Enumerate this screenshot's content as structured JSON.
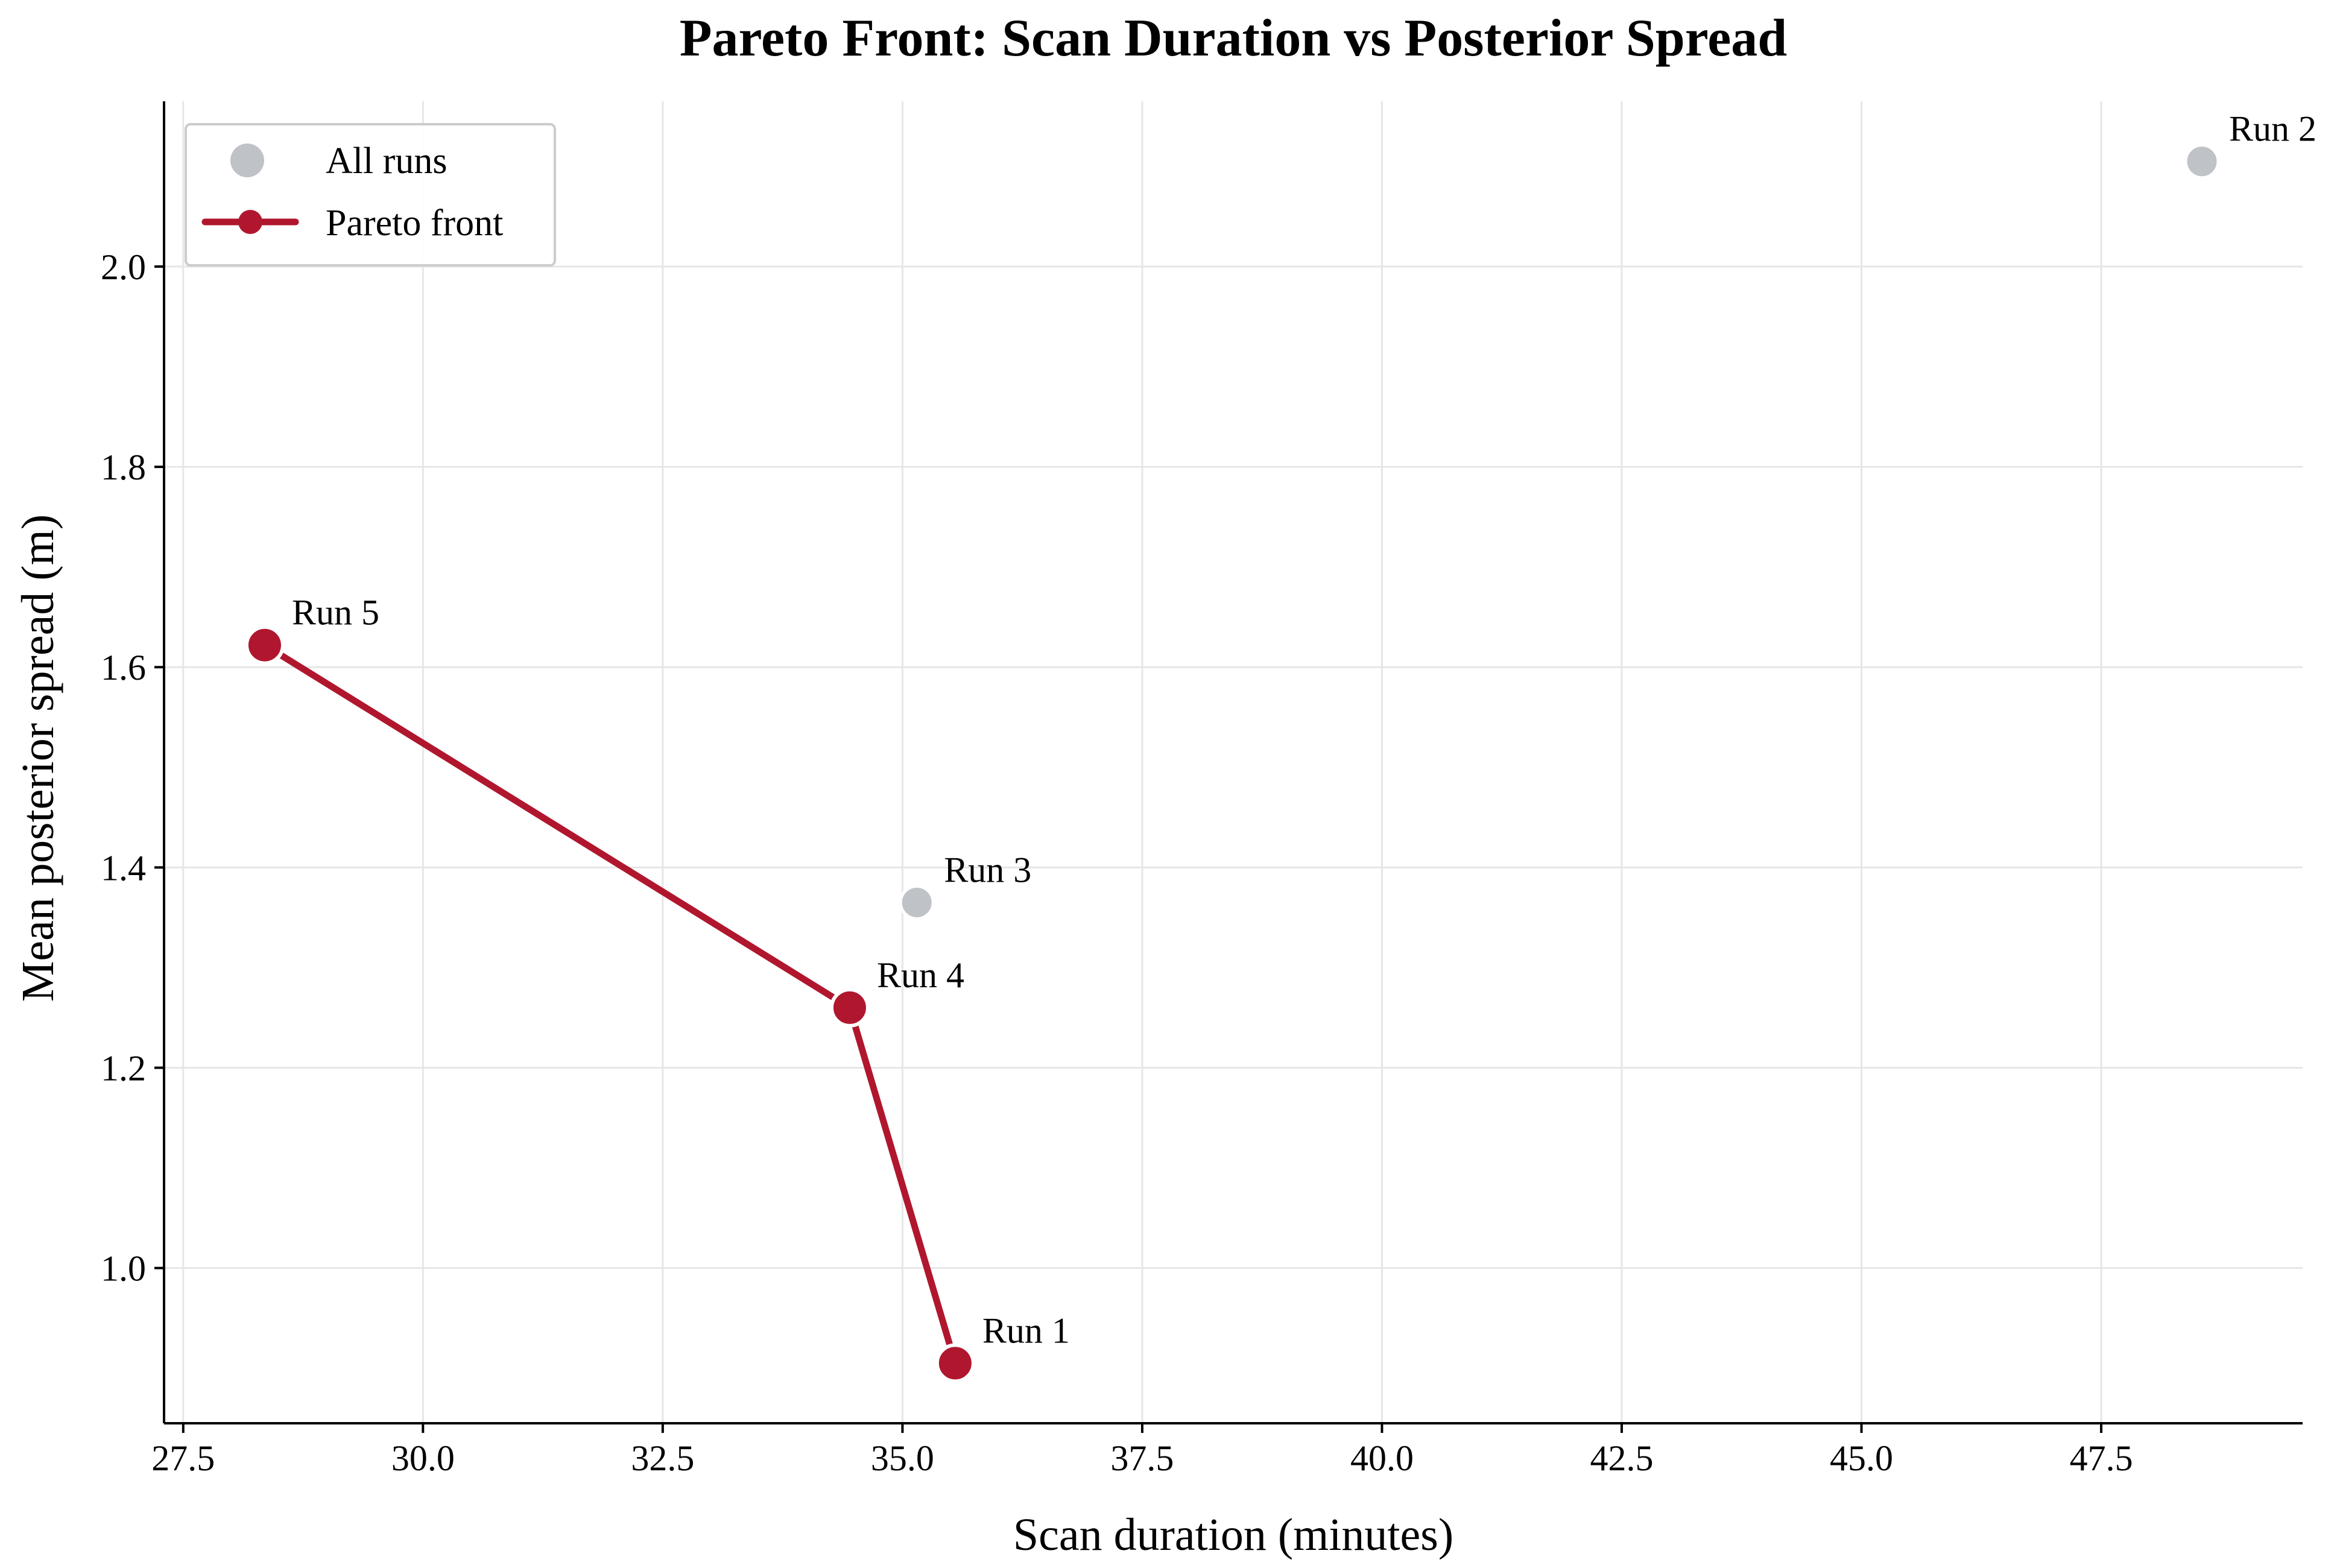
{
  "chart_data": {
    "type": "scatter",
    "title": "Pareto Front: Scan Duration vs Posterior Spread",
    "xlabel": "Scan duration (minutes)",
    "ylabel": "Mean posterior spread (m)",
    "xlim": [
      27.3,
      49.6
    ],
    "ylim": [
      0.845,
      2.165
    ],
    "xticks": [
      27.5,
      30.0,
      32.5,
      35.0,
      37.5,
      40.0,
      42.5,
      45.0,
      47.5
    ],
    "xtick_labels": [
      "27.5",
      "30.0",
      "32.5",
      "35.0",
      "37.5",
      "40.0",
      "42.5",
      "45.0",
      "47.5"
    ],
    "yticks": [
      1.0,
      1.2,
      1.4,
      1.6,
      1.8,
      2.0
    ],
    "ytick_labels": [
      "1.0",
      "1.2",
      "1.4",
      "1.6",
      "1.8",
      "2.0"
    ],
    "grid": true,
    "legend_position": "top-left",
    "series": [
      {
        "name": "All runs",
        "kind": "scatter",
        "color": "#bfc2c7",
        "points": [
          {
            "label": "Run 1",
            "x": 35.55,
            "y": 0.905
          },
          {
            "label": "Run 2",
            "x": 48.55,
            "y": 2.105
          },
          {
            "label": "Run 3",
            "x": 35.15,
            "y": 1.365
          },
          {
            "label": "Run 4",
            "x": 34.45,
            "y": 1.26
          },
          {
            "label": "Run 5",
            "x": 28.35,
            "y": 1.622
          }
        ]
      },
      {
        "name": "Pareto front",
        "kind": "line-markers",
        "color": "#b0172e",
        "points": [
          {
            "label": "Run 5",
            "x": 28.35,
            "y": 1.622
          },
          {
            "label": "Run 4",
            "x": 34.45,
            "y": 1.26
          },
          {
            "label": "Run 1",
            "x": 35.55,
            "y": 0.905
          }
        ]
      }
    ]
  }
}
